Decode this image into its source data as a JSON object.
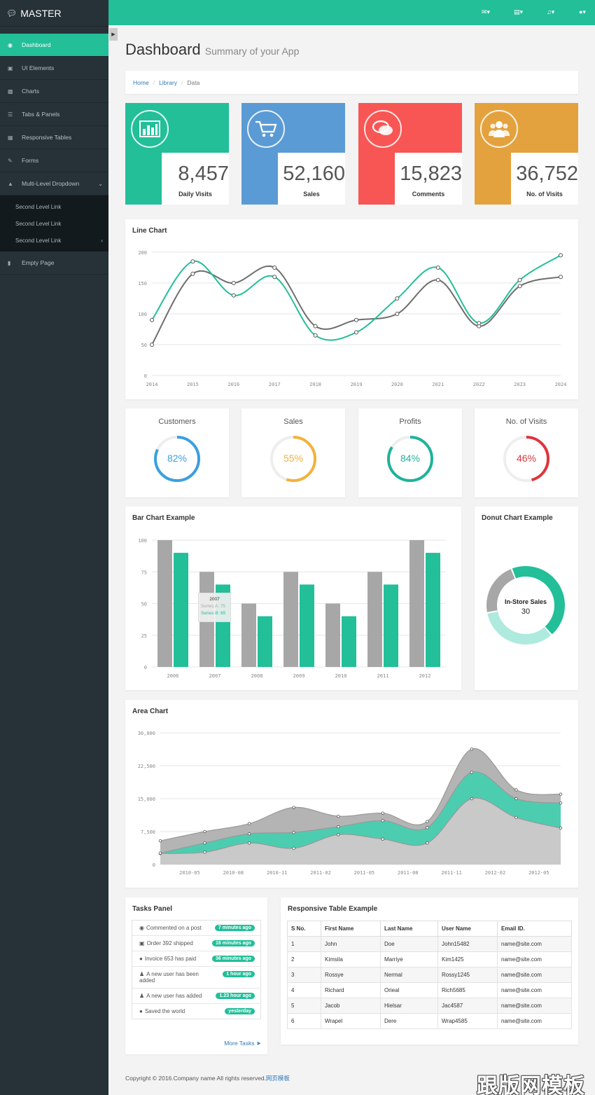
{
  "brand": {
    "name": "MASTER"
  },
  "sidebar": {
    "items": [
      {
        "label": "Dashboard",
        "icon": "dashboard-icon"
      },
      {
        "label": "UI Elements",
        "icon": "desktop-icon"
      },
      {
        "label": "Charts",
        "icon": "bar-chart-icon"
      },
      {
        "label": "Tabs & Panels",
        "icon": "list-icon"
      },
      {
        "label": "Responsive Tables",
        "icon": "table-icon"
      },
      {
        "label": "Forms",
        "icon": "edit-icon"
      },
      {
        "label": "Multi-Level Dropdown",
        "icon": "sitemap-icon"
      }
    ],
    "sub_items": [
      "Second Level Link",
      "Second Level Link",
      "Second Level Link"
    ],
    "empty": {
      "label": "Empty Page",
      "icon": "file-icon"
    }
  },
  "header": {
    "title": "Dashboard",
    "subtitle": "Summary of your App"
  },
  "breadcrumb": {
    "home": "Home",
    "library": "Library",
    "current": "Data"
  },
  "stats": [
    {
      "value": "8,457",
      "label": "Daily Visits",
      "color": "#22bf99",
      "icon": "bar-chart-icon"
    },
    {
      "value": "52,160",
      "label": "Sales",
      "color": "#5b9bd5",
      "icon": "shopping-cart-icon"
    },
    {
      "value": "15,823",
      "label": "Comments",
      "color": "#f85654",
      "icon": "comments-icon"
    },
    {
      "value": "36,752",
      "label": "No. of Visits",
      "color": "#e4a23e",
      "icon": "users-icon"
    }
  ],
  "line_chart": {
    "title": "Line Chart"
  },
  "gauges": [
    {
      "title": "Customers",
      "value": "82%",
      "pct": 82,
      "color": "#3b9fe0"
    },
    {
      "title": "Sales",
      "value": "55%",
      "pct": 55,
      "color": "#f2b23c"
    },
    {
      "title": "Profits",
      "value": "84%",
      "pct": 84,
      "color": "#1fb39a"
    },
    {
      "title": "No. of Visits",
      "value": "46%",
      "pct": 46,
      "color": "#e0343c"
    }
  ],
  "bar_chart": {
    "title": "Bar Chart Example",
    "tooltip": {
      "title": "2007",
      "a": "Series A: 75",
      "b": "Series B: 65"
    }
  },
  "donut_chart": {
    "title": "Donut Chart Example",
    "label": "In-Store Sales",
    "value": "30"
  },
  "area_chart": {
    "title": "Area Chart"
  },
  "tasks": {
    "title": "Tasks Panel",
    "more": "More Tasks",
    "items": [
      {
        "text": "Commented on a post",
        "badge": "7 minutes ago",
        "icon": "comment-icon"
      },
      {
        "text": "Order 392 shipped",
        "badge": "16 minutes ago",
        "icon": "truck-icon"
      },
      {
        "text": "Invoice 653 has paid",
        "badge": "36 minutes ago",
        "icon": "globe-icon"
      },
      {
        "text": "A new user has been added",
        "badge": "1 hour ago",
        "icon": "user-icon"
      },
      {
        "text": "A new user has added",
        "badge": "1.23 hour ago",
        "icon": "user-icon"
      },
      {
        "text": "Saved the world",
        "badge": "yesterday",
        "icon": "globe-icon"
      }
    ]
  },
  "table": {
    "title": "Responsive Table Example",
    "headers": [
      "S No.",
      "First Name",
      "Last Name",
      "User Name",
      "Email ID."
    ],
    "rows": [
      [
        "1",
        "John",
        "Doe",
        "John15482",
        "name@site.com"
      ],
      [
        "2",
        "Kimsila",
        "Marriye",
        "Kim1425",
        "name@site.com"
      ],
      [
        "3",
        "Rossye",
        "Nermal",
        "Rossy1245",
        "name@site.com"
      ],
      [
        "4",
        "Richard",
        "Orieal",
        "Rich5685",
        "name@site.com"
      ],
      [
        "5",
        "Jacob",
        "Hielsar",
        "Jac4587",
        "name@site.com"
      ],
      [
        "6",
        "Wrapel",
        "Dere",
        "Wrap4585",
        "name@site.com"
      ]
    ]
  },
  "footer": {
    "text": "Copyright © 2016.Company name All rights reserved.",
    "link": "网页模板"
  },
  "watermark": "跟版网模板",
  "chart_data": [
    {
      "type": "line",
      "title": "Line Chart",
      "x": [
        2014,
        2015,
        2016,
        2017,
        2018,
        2019,
        2020,
        2021,
        2022,
        2023,
        2024
      ],
      "yticks": [
        0,
        50,
        100,
        150,
        200
      ],
      "ylim": [
        0,
        200
      ],
      "series": [
        {
          "color": "#22bf99",
          "values": [
            90,
            185,
            130,
            160,
            65,
            70,
            125,
            175,
            85,
            155,
            195
          ]
        },
        {
          "color": "#6e6e6e",
          "values": [
            50,
            165,
            150,
            175,
            80,
            90,
            100,
            155,
            80,
            145,
            160
          ]
        }
      ]
    },
    {
      "type": "bar",
      "title": "Bar Chart Example",
      "categories": [
        "2006",
        "2007",
        "2008",
        "2009",
        "2010",
        "2011",
        "2012"
      ],
      "yticks": [
        0,
        25,
        50,
        75,
        100
      ],
      "ylim": [
        0,
        100
      ],
      "series": [
        {
          "name": "Series A",
          "color": "#a7a7a7",
          "values": [
            100,
            75,
            50,
            75,
            50,
            75,
            100
          ]
        },
        {
          "name": "Series B",
          "color": "#22bf99",
          "values": [
            90,
            65,
            40,
            65,
            40,
            65,
            90
          ]
        }
      ]
    },
    {
      "type": "pie",
      "title": "Donut Chart Example",
      "slices": [
        {
          "value": 40,
          "color": "#22bf99"
        },
        {
          "value": 30,
          "color": "#aeeadd",
          "label": "In-Store Sales"
        },
        {
          "value": 20,
          "color": "#a7a7a7"
        }
      ]
    },
    {
      "type": "area",
      "title": "Area Chart",
      "x": [
        "2010-03",
        "2010-06",
        "2010-09",
        "2010-12",
        "2011-03",
        "2011-06",
        "2011-09",
        "2011-12",
        "2012-03",
        "2012-06"
      ],
      "xticks": [
        "2010-05",
        "2010-08",
        "2010-11",
        "2011-02",
        "2011-05",
        "2011-08",
        "2011-11",
        "2012-02",
        "2012-05"
      ],
      "yticks": [
        "0",
        "7,500",
        "15,000",
        "22,500",
        "30,000"
      ],
      "ylim": [
        0,
        30000
      ],
      "series": [
        {
          "color": "#c9c9c9",
          "values": [
            2500,
            2800,
            4900,
            3700,
            6800,
            5800,
            4900,
            15000,
            10700,
            8300
          ]
        },
        {
          "color": "#4ccdb0",
          "values": [
            2600,
            4900,
            7000,
            7300,
            8600,
            10000,
            8400,
            21000,
            15000,
            14000
          ]
        },
        {
          "color": "#b4b4b4",
          "values": [
            5400,
            7500,
            9300,
            13000,
            11000,
            11700,
            9800,
            26300,
            17000,
            16000
          ]
        }
      ]
    }
  ]
}
